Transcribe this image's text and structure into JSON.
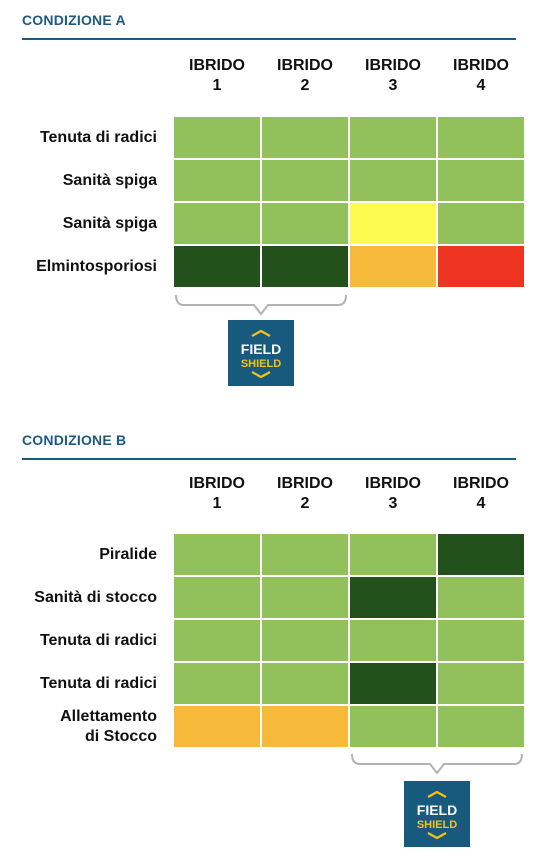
{
  "colors": {
    "light_green": "#92c05a",
    "dark_green": "#22511c",
    "yellow": "#fdfb4f",
    "orange": "#f7b93a",
    "red": "#ec3421",
    "title_blue": "#1d5a82",
    "badge_blue": "#175a7e",
    "badge_gold": "#f3c316"
  },
  "badge": {
    "line1": "FIELD",
    "line2": "SHIELD"
  },
  "conditions": [
    {
      "title": "CONDIZIONE A",
      "columns": [
        {
          "line1": "IBRIDO",
          "line2": "1"
        },
        {
          "line1": "IBRIDO",
          "line2": "2"
        },
        {
          "line1": "IBRIDO",
          "line2": "3"
        },
        {
          "line1": "IBRIDO",
          "line2": "4"
        }
      ],
      "rows": [
        {
          "label": "Tenuta di radici",
          "cells": [
            "light_green",
            "light_green",
            "light_green",
            "light_green"
          ]
        },
        {
          "label": "Sanità spiga",
          "cells": [
            "light_green",
            "light_green",
            "light_green",
            "light_green"
          ]
        },
        {
          "label": "Sanità spiga",
          "cells": [
            "light_green",
            "light_green",
            "yellow",
            "light_green"
          ]
        },
        {
          "label": "Elmintosporiosi",
          "cells": [
            "dark_green",
            "dark_green",
            "orange",
            "red"
          ]
        }
      ],
      "bracket_columns": [
        1,
        2
      ]
    },
    {
      "title": "CONDIZIONE B",
      "columns": [
        {
          "line1": "IBRIDO",
          "line2": "1"
        },
        {
          "line1": "IBRIDO",
          "line2": "2"
        },
        {
          "line1": "IBRIDO",
          "line2": "3"
        },
        {
          "line1": "IBRIDO",
          "line2": "4"
        }
      ],
      "rows": [
        {
          "label": "Piralide",
          "cells": [
            "light_green",
            "light_green",
            "light_green",
            "dark_green"
          ]
        },
        {
          "label": "Sanità di stocco",
          "cells": [
            "light_green",
            "light_green",
            "dark_green",
            "light_green"
          ]
        },
        {
          "label": "Tenuta di radici",
          "cells": [
            "light_green",
            "light_green",
            "light_green",
            "light_green"
          ]
        },
        {
          "label": "Tenuta di radici",
          "cells": [
            "light_green",
            "light_green",
            "dark_green",
            "light_green"
          ]
        },
        {
          "label": "Allettamento\ndi Stocco",
          "cells": [
            "orange",
            "orange",
            "light_green",
            "light_green"
          ]
        }
      ],
      "bracket_columns": [
        3,
        4
      ]
    }
  ]
}
